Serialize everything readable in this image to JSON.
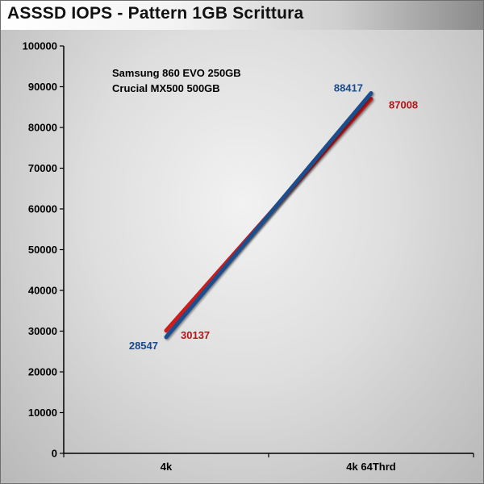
{
  "chart_data": {
    "type": "line",
    "title": "ASSSD IOPS - Pattern 1GB Scrittura",
    "xlabel": "",
    "ylabel": "",
    "categories": [
      "4k",
      "4k 64Thrd"
    ],
    "ylim": [
      0,
      100000
    ],
    "yticks": [
      0,
      10000,
      20000,
      30000,
      40000,
      50000,
      60000,
      70000,
      80000,
      90000,
      100000
    ],
    "grid": false,
    "legend_position": "top-left",
    "series": [
      {
        "name": "Samsung 860 EVO 250GB",
        "color": "#cc1f1f",
        "values": [
          30137,
          87008
        ]
      },
      {
        "name": "Crucial MX500 500GB",
        "color": "#1f4e8c",
        "values": [
          28547,
          88417
        ]
      }
    ],
    "data_labels": [
      {
        "series": 0,
        "point": 0,
        "text": "30137",
        "color": "#b01818"
      },
      {
        "series": 0,
        "point": 1,
        "text": "87008",
        "color": "#b01818"
      },
      {
        "series": 1,
        "point": 0,
        "text": "28547",
        "color": "#1a4a8a"
      },
      {
        "series": 1,
        "point": 1,
        "text": "88417",
        "color": "#1a4a8a"
      }
    ]
  }
}
